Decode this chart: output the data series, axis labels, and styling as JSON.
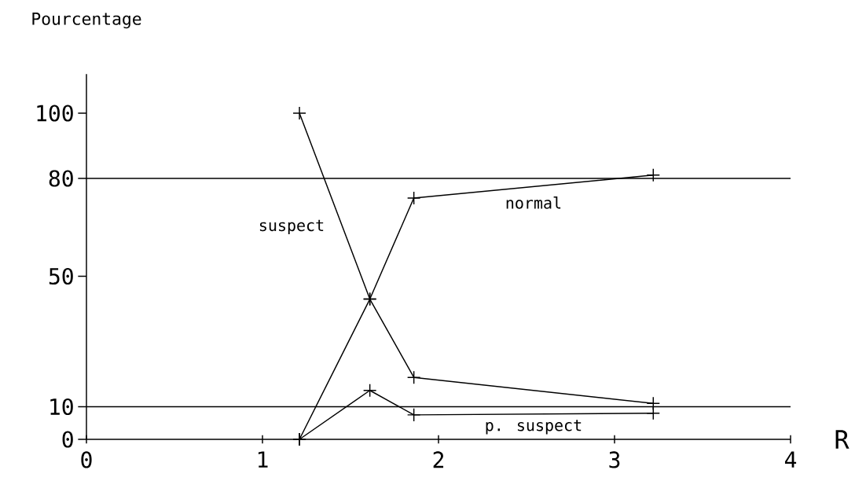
{
  "chart_data": {
    "type": "line",
    "xlabel": "R",
    "ylabel": "Pourcentage",
    "xlim": [
      0,
      4
    ],
    "ylim": [
      0,
      112
    ],
    "xticks": [
      0,
      1,
      2,
      3,
      4
    ],
    "yticks": [
      0,
      10,
      50,
      80,
      100
    ],
    "marker": "cross",
    "line_style": "solid",
    "grid": false,
    "ref_lines": [
      {
        "axis": "y",
        "value": 80
      },
      {
        "axis": "y",
        "value": 10
      }
    ],
    "series": [
      {
        "name": "suspect",
        "color": "#000000",
        "x": [
          1.21,
          1.61,
          1.86,
          3.22
        ],
        "values": [
          100,
          43,
          19,
          11
        ]
      },
      {
        "name": "normal",
        "color": "#000000",
        "x": [
          1.21,
          1.61,
          1.86,
          3.22
        ],
        "values": [
          0,
          43,
          74,
          81
        ]
      },
      {
        "name": "p. suspect",
        "color": "#000000",
        "x": [
          1.21,
          1.61,
          1.86,
          3.22
        ],
        "values": [
          0,
          15,
          7.5,
          8
        ]
      }
    ]
  }
}
